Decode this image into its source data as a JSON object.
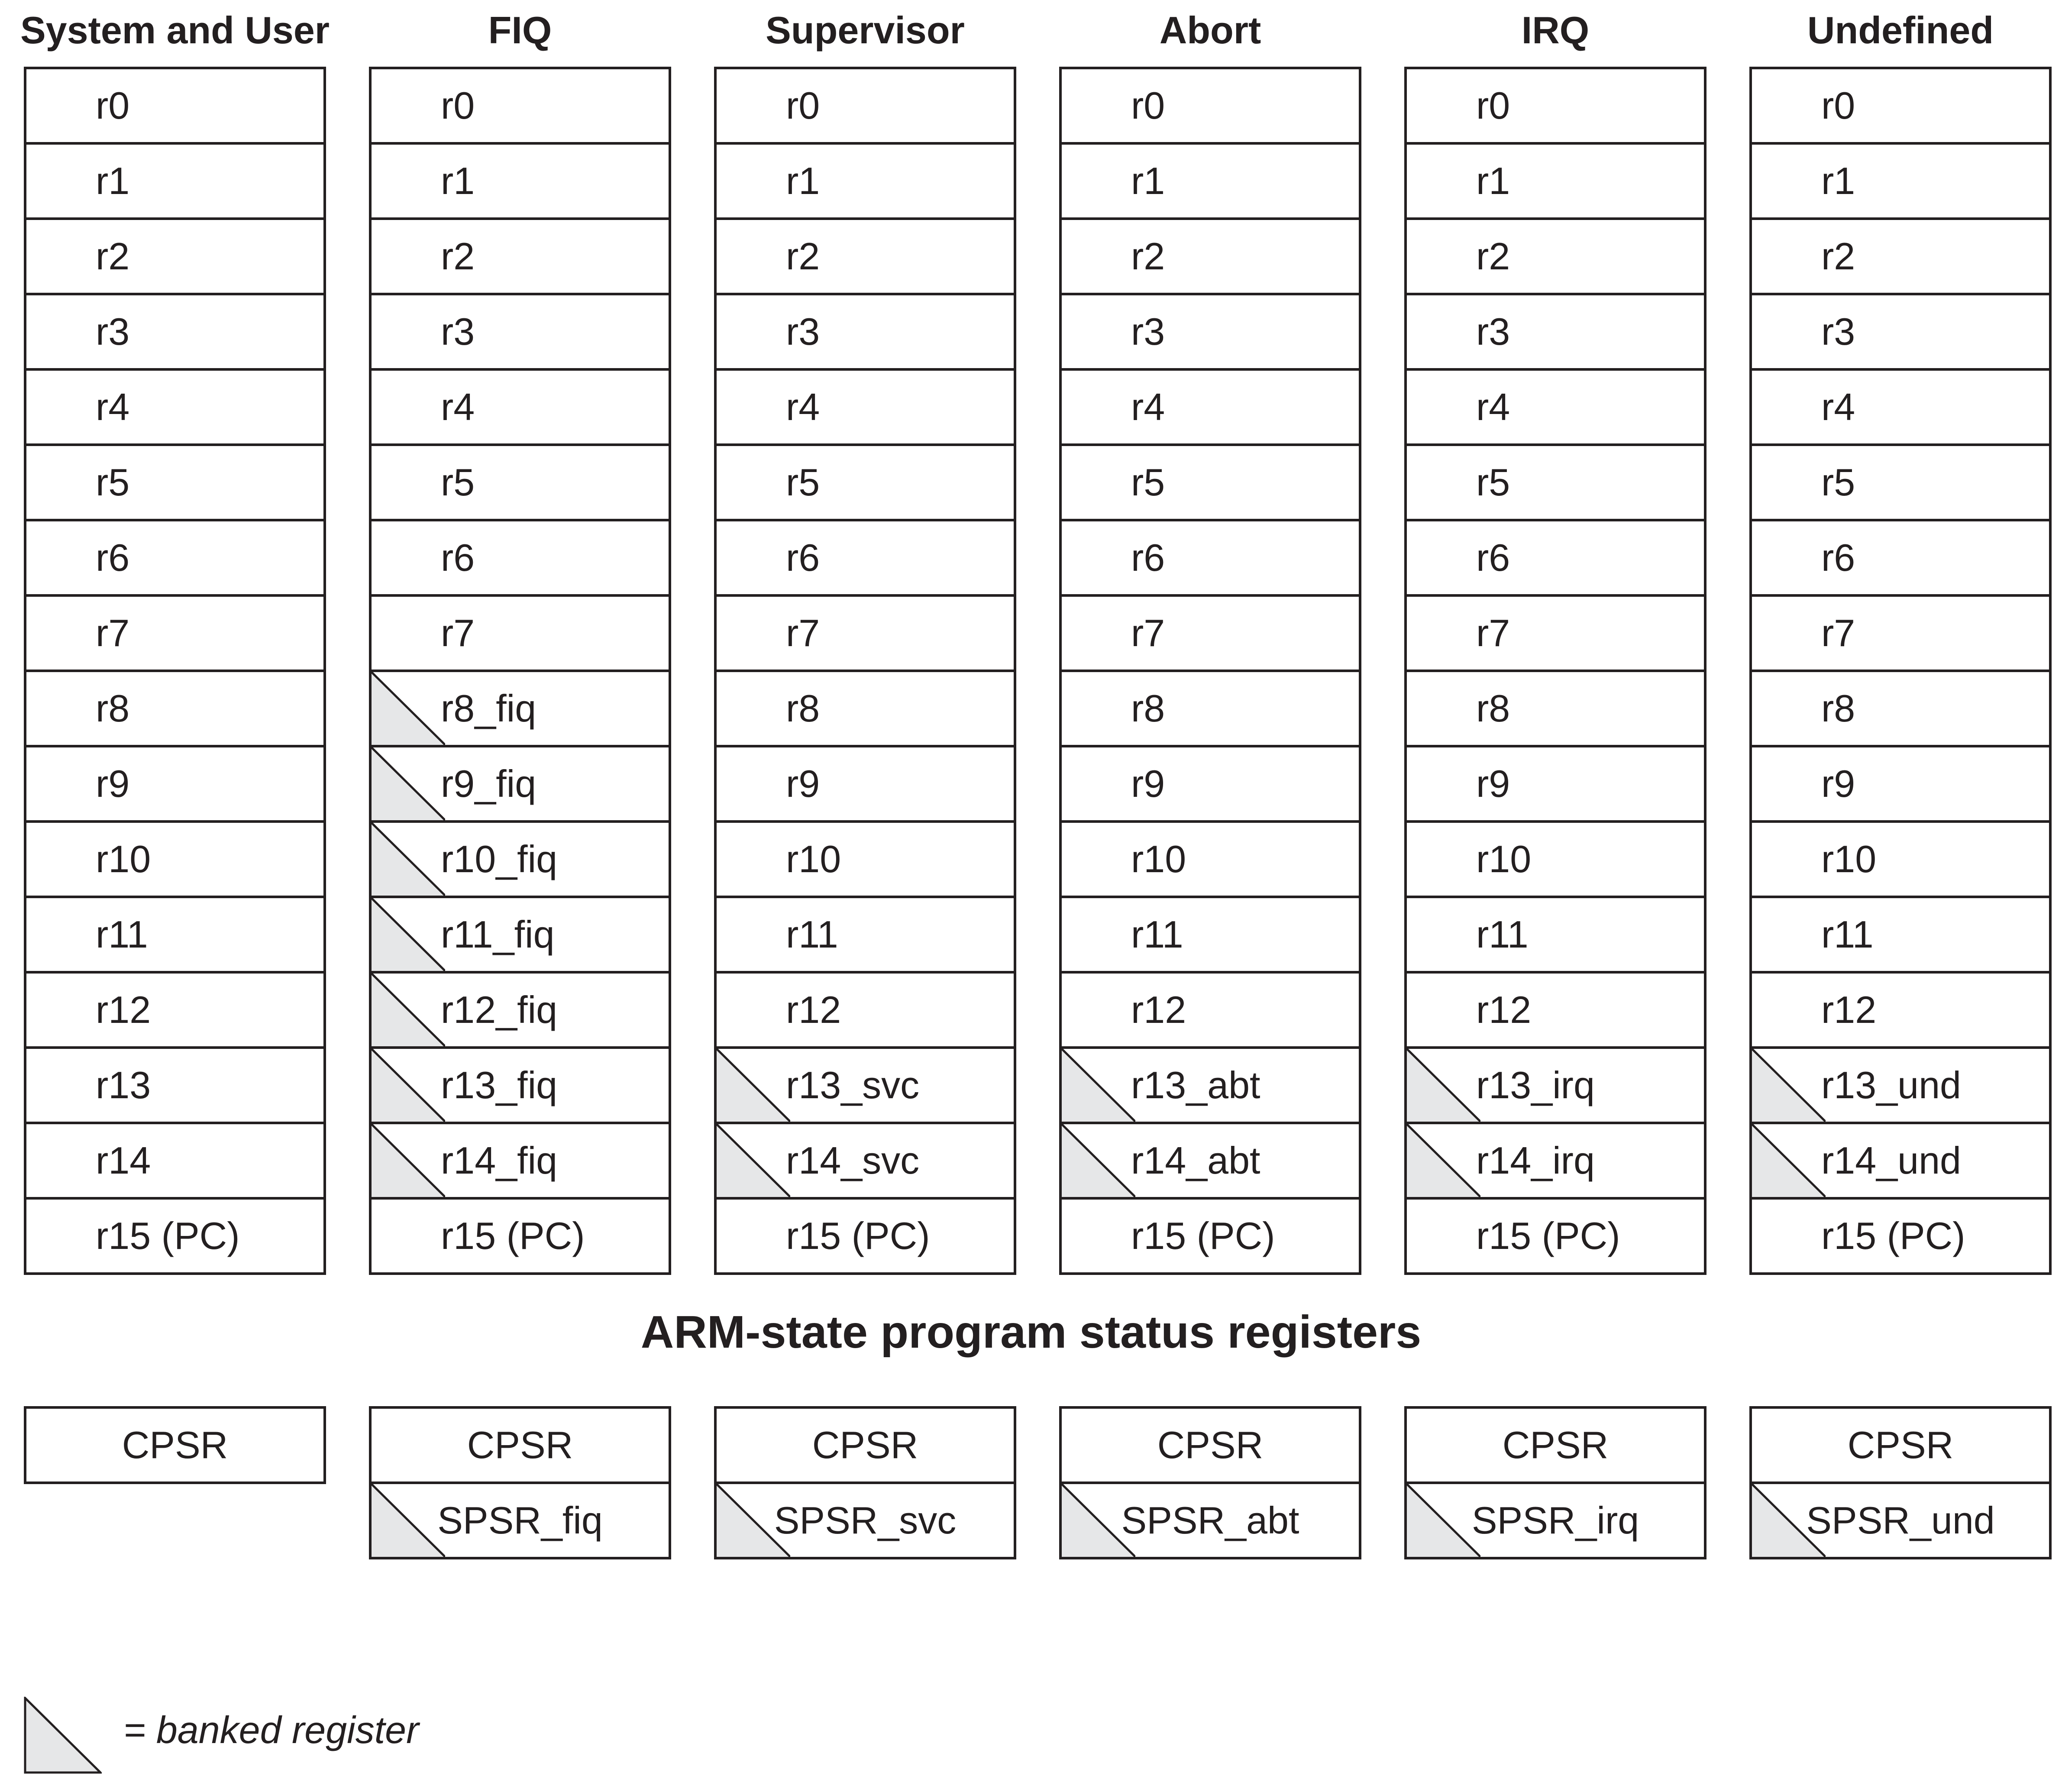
{
  "modes": [
    {
      "title": "System and User",
      "registers": [
        {
          "label": "r0",
          "banked": false
        },
        {
          "label": "r1",
          "banked": false
        },
        {
          "label": "r2",
          "banked": false
        },
        {
          "label": "r3",
          "banked": false
        },
        {
          "label": "r4",
          "banked": false
        },
        {
          "label": "r5",
          "banked": false
        },
        {
          "label": "r6",
          "banked": false
        },
        {
          "label": "r7",
          "banked": false
        },
        {
          "label": "r8",
          "banked": false
        },
        {
          "label": "r9",
          "banked": false
        },
        {
          "label": "r10",
          "banked": false
        },
        {
          "label": "r11",
          "banked": false
        },
        {
          "label": "r12",
          "banked": false
        },
        {
          "label": "r13",
          "banked": false
        },
        {
          "label": "r14",
          "banked": false
        },
        {
          "label": "r15 (PC)",
          "banked": false
        }
      ],
      "status": [
        {
          "label": "CPSR",
          "banked": false
        }
      ]
    },
    {
      "title": "FIQ",
      "registers": [
        {
          "label": "r0",
          "banked": false
        },
        {
          "label": "r1",
          "banked": false
        },
        {
          "label": "r2",
          "banked": false
        },
        {
          "label": "r3",
          "banked": false
        },
        {
          "label": "r4",
          "banked": false
        },
        {
          "label": "r5",
          "banked": false
        },
        {
          "label": "r6",
          "banked": false
        },
        {
          "label": "r7",
          "banked": false
        },
        {
          "label": "r8_fiq",
          "banked": true
        },
        {
          "label": "r9_fiq",
          "banked": true
        },
        {
          "label": "r10_fiq",
          "banked": true
        },
        {
          "label": "r11_fiq",
          "banked": true
        },
        {
          "label": "r12_fiq",
          "banked": true
        },
        {
          "label": "r13_fiq",
          "banked": true
        },
        {
          "label": "r14_fiq",
          "banked": true
        },
        {
          "label": "r15 (PC)",
          "banked": false
        }
      ],
      "status": [
        {
          "label": "CPSR",
          "banked": false
        },
        {
          "label": "SPSR_fiq",
          "banked": true
        }
      ]
    },
    {
      "title": "Supervisor",
      "registers": [
        {
          "label": "r0",
          "banked": false
        },
        {
          "label": "r1",
          "banked": false
        },
        {
          "label": "r2",
          "banked": false
        },
        {
          "label": "r3",
          "banked": false
        },
        {
          "label": "r4",
          "banked": false
        },
        {
          "label": "r5",
          "banked": false
        },
        {
          "label": "r6",
          "banked": false
        },
        {
          "label": "r7",
          "banked": false
        },
        {
          "label": "r8",
          "banked": false
        },
        {
          "label": "r9",
          "banked": false
        },
        {
          "label": "r10",
          "banked": false
        },
        {
          "label": "r11",
          "banked": false
        },
        {
          "label": "r12",
          "banked": false
        },
        {
          "label": "r13_svc",
          "banked": true
        },
        {
          "label": "r14_svc",
          "banked": true
        },
        {
          "label": "r15 (PC)",
          "banked": false
        }
      ],
      "status": [
        {
          "label": "CPSR",
          "banked": false
        },
        {
          "label": "SPSR_svc",
          "banked": true
        }
      ]
    },
    {
      "title": "Abort",
      "registers": [
        {
          "label": "r0",
          "banked": false
        },
        {
          "label": "r1",
          "banked": false
        },
        {
          "label": "r2",
          "banked": false
        },
        {
          "label": "r3",
          "banked": false
        },
        {
          "label": "r4",
          "banked": false
        },
        {
          "label": "r5",
          "banked": false
        },
        {
          "label": "r6",
          "banked": false
        },
        {
          "label": "r7",
          "banked": false
        },
        {
          "label": "r8",
          "banked": false
        },
        {
          "label": "r9",
          "banked": false
        },
        {
          "label": "r10",
          "banked": false
        },
        {
          "label": "r11",
          "banked": false
        },
        {
          "label": "r12",
          "banked": false
        },
        {
          "label": "r13_abt",
          "banked": true
        },
        {
          "label": "r14_abt",
          "banked": true
        },
        {
          "label": "r15 (PC)",
          "banked": false
        }
      ],
      "status": [
        {
          "label": "CPSR",
          "banked": false
        },
        {
          "label": "SPSR_abt",
          "banked": true
        }
      ]
    },
    {
      "title": "IRQ",
      "registers": [
        {
          "label": "r0",
          "banked": false
        },
        {
          "label": "r1",
          "banked": false
        },
        {
          "label": "r2",
          "banked": false
        },
        {
          "label": "r3",
          "banked": false
        },
        {
          "label": "r4",
          "banked": false
        },
        {
          "label": "r5",
          "banked": false
        },
        {
          "label": "r6",
          "banked": false
        },
        {
          "label": "r7",
          "banked": false
        },
        {
          "label": "r8",
          "banked": false
        },
        {
          "label": "r9",
          "banked": false
        },
        {
          "label": "r10",
          "banked": false
        },
        {
          "label": "r11",
          "banked": false
        },
        {
          "label": "r12",
          "banked": false
        },
        {
          "label": "r13_irq",
          "banked": true
        },
        {
          "label": "r14_irq",
          "banked": true
        },
        {
          "label": "r15 (PC)",
          "banked": false
        }
      ],
      "status": [
        {
          "label": "CPSR",
          "banked": false
        },
        {
          "label": "SPSR_irq",
          "banked": true
        }
      ]
    },
    {
      "title": "Undefined",
      "registers": [
        {
          "label": "r0",
          "banked": false
        },
        {
          "label": "r1",
          "banked": false
        },
        {
          "label": "r2",
          "banked": false
        },
        {
          "label": "r3",
          "banked": false
        },
        {
          "label": "r4",
          "banked": false
        },
        {
          "label": "r5",
          "banked": false
        },
        {
          "label": "r6",
          "banked": false
        },
        {
          "label": "r7",
          "banked": false
        },
        {
          "label": "r8",
          "banked": false
        },
        {
          "label": "r9",
          "banked": false
        },
        {
          "label": "r10",
          "banked": false
        },
        {
          "label": "r11",
          "banked": false
        },
        {
          "label": "r12",
          "banked": false
        },
        {
          "label": "r13_und",
          "banked": true
        },
        {
          "label": "r14_und",
          "banked": true
        },
        {
          "label": "r15 (PC)",
          "banked": false
        }
      ],
      "status": [
        {
          "label": "CPSR",
          "banked": false
        },
        {
          "label": "SPSR_und",
          "banked": true
        }
      ]
    }
  ],
  "status_title": "ARM-state program status registers",
  "legend": {
    "text": "= banked register"
  },
  "colors": {
    "line": "#231f20",
    "banked_fill": "#e6e7e8",
    "background": "#ffffff"
  }
}
